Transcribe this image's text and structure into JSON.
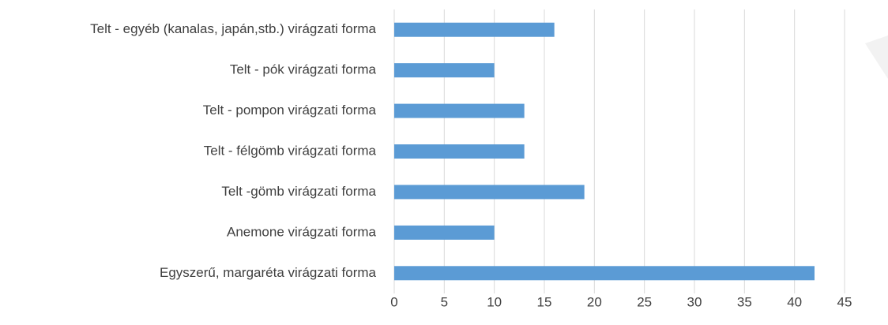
{
  "chart_data": {
    "type": "bar",
    "orientation": "horizontal",
    "categories": [
      "Telt - egyéb (kanalas, japán,stb.) virágzati forma",
      "Telt - pók virágzati forma",
      "Telt - pompon virágzati forma",
      "Telt - félgömb virágzati forma",
      "Telt -gömb virágzati forma",
      "Anemone virágzati forma",
      "Egyszerű, margaréta virágzati forma"
    ],
    "values": [
      16,
      10,
      13,
      13,
      19,
      10,
      42
    ],
    "color": "#5b9bd5",
    "xlim": [
      0,
      45
    ],
    "xticks": [
      0,
      5,
      10,
      15,
      20,
      25,
      30,
      35,
      40,
      45
    ],
    "grid": true
  }
}
